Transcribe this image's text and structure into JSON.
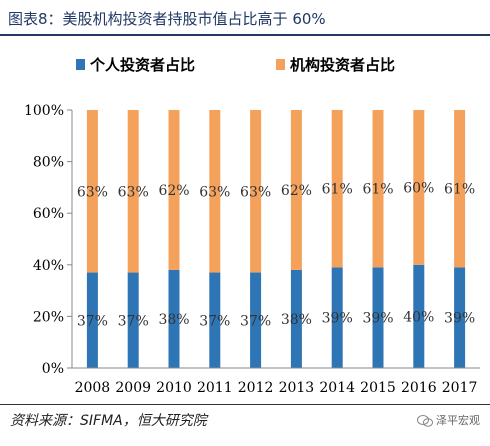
{
  "figure_title": "图表8：美股机构投资者持股市值占比高于 60%",
  "source_note": "资料来源：SIFMA，恒大研究院",
  "watermark": "泽平宏观",
  "chart_data": {
    "type": "bar",
    "stacked": true,
    "categories": [
      "2008",
      "2009",
      "2010",
      "2011",
      "2012",
      "2013",
      "2014",
      "2015",
      "2016",
      "2017"
    ],
    "series": [
      {
        "name": "个人投资者占比",
        "color": "#2e75b6",
        "values": [
          37,
          37,
          38,
          37,
          37,
          38,
          39,
          39,
          40,
          39
        ],
        "labels": [
          "37%",
          "37%",
          "38%",
          "37%",
          "37%",
          "38%",
          "39%",
          "39%",
          "40%",
          "39%"
        ]
      },
      {
        "name": "机构投资者占比",
        "color": "#f4a25b",
        "values": [
          63,
          63,
          62,
          63,
          63,
          62,
          61,
          61,
          60,
          61
        ],
        "labels": [
          "63%",
          "63%",
          "62%",
          "63%",
          "63%",
          "62%",
          "61%",
          "61%",
          "60%",
          "61%"
        ]
      }
    ],
    "ylim": [
      0,
      100
    ],
    "yticks": [
      "0%",
      "20%",
      "40%",
      "60%",
      "80%",
      "100%"
    ],
    "legend_position": "top",
    "grid": false
  }
}
